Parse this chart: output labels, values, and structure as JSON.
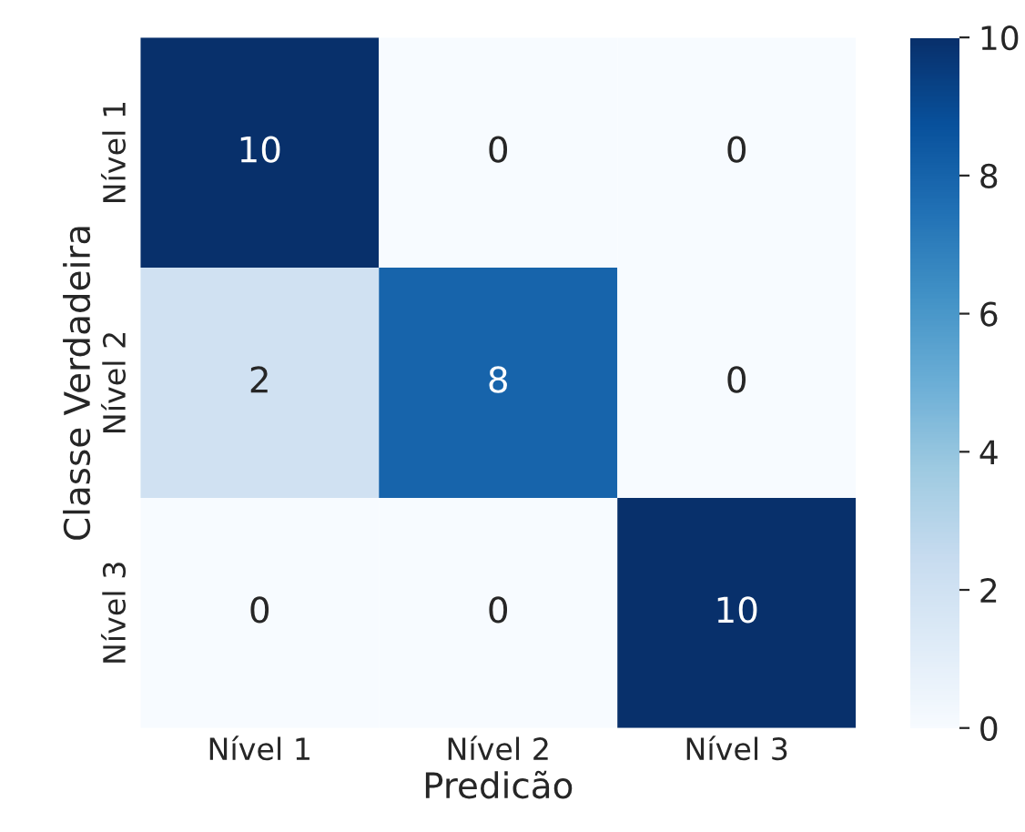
{
  "chart_data": {
    "type": "heatmap",
    "xlabel": "Predicão",
    "ylabel": "Classe Verdadeira",
    "categories": [
      "Nível 1",
      "Nível 2",
      "Nível 3"
    ],
    "y_categories": [
      "Nível 1",
      "Nível 2",
      "Nível 3"
    ],
    "cells": [
      [
        10,
        0,
        0
      ],
      [
        2,
        8,
        0
      ],
      [
        0,
        0,
        10
      ]
    ],
    "clim": [
      0,
      10
    ],
    "cticks": [
      0,
      2,
      4,
      6,
      8,
      10
    ],
    "data_labels": true
  }
}
